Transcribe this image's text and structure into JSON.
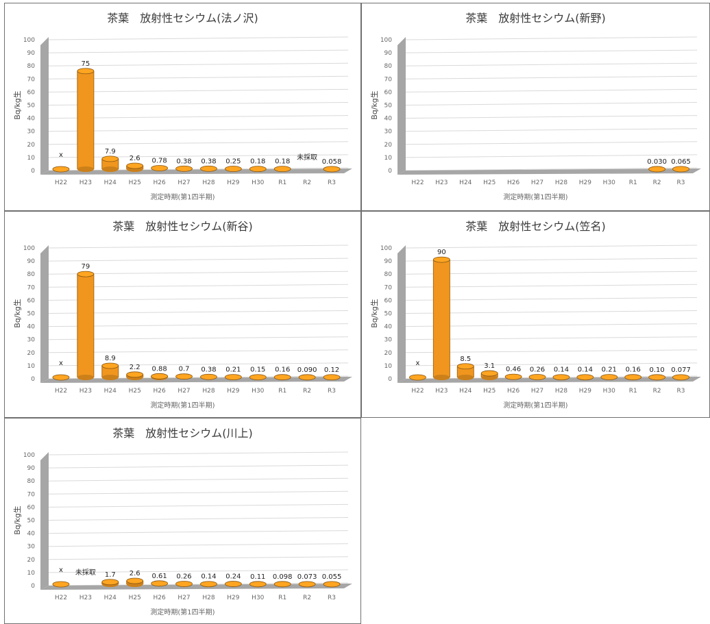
{
  "chart_data": [
    {
      "type": "bar",
      "title": "茶葉　放射性セシウム(法ノ沢)",
      "xlabel": "測定時期(第1四半期)",
      "ylabel": "Bq/kg生",
      "ylim": [
        0,
        100
      ],
      "yticks": [
        "0",
        "10",
        "20",
        "30",
        "40",
        "50",
        "60",
        "70",
        "80",
        "90",
        "100"
      ],
      "categories": [
        "H22",
        "H23",
        "H24",
        "H25",
        "H26",
        "H27",
        "H28",
        "H29",
        "H30",
        "R1",
        "R2",
        "R3"
      ],
      "values": [
        0,
        75,
        7.9,
        2.6,
        0.78,
        0.38,
        0.38,
        0.25,
        0.18,
        0.18,
        null,
        0.058
      ],
      "labels": [
        "x",
        "75",
        "7.9",
        "2.6",
        "0.78",
        "0.38",
        "0.38",
        "0.25",
        "0.18",
        "0.18",
        "未採取",
        "0.058"
      ],
      "bar_color": "#f0961e",
      "grid": true
    },
    {
      "type": "bar",
      "title": "茶葉　放射性セシウム(新野)",
      "xlabel": "測定時期(第1四半期)",
      "ylabel": "Bq/kg生",
      "ylim": [
        0,
        100
      ],
      "yticks": [
        "0",
        "10",
        "20",
        "30",
        "40",
        "50",
        "60",
        "70",
        "80",
        "90",
        "100"
      ],
      "categories": [
        "H22",
        "H23",
        "H24",
        "H25",
        "H26",
        "H27",
        "H28",
        "H29",
        "H30",
        "R1",
        "R2",
        "R3"
      ],
      "values": [
        null,
        null,
        null,
        null,
        null,
        null,
        null,
        null,
        null,
        null,
        0.03,
        0.065
      ],
      "labels": [
        "",
        "",
        "",
        "",
        "",
        "",
        "",
        "",
        "",
        "",
        "0.030",
        "0.065"
      ],
      "bar_color": "#f0961e",
      "grid": true
    },
    {
      "type": "bar",
      "title": "茶葉　放射性セシウム(新谷)",
      "xlabel": "測定時期(第1四半期)",
      "ylabel": "Bq/kg生",
      "ylim": [
        0,
        100
      ],
      "yticks": [
        "0",
        "10",
        "20",
        "30",
        "40",
        "50",
        "60",
        "70",
        "80",
        "90",
        "100"
      ],
      "categories": [
        "H22",
        "H23",
        "H24",
        "H25",
        "H26",
        "H27",
        "H28",
        "H29",
        "H30",
        "R1",
        "R2",
        "R3"
      ],
      "values": [
        0,
        79,
        8.9,
        2.2,
        0.88,
        0.7,
        0.38,
        0.21,
        0.15,
        0.16,
        0.09,
        0.12
      ],
      "labels": [
        "x",
        "79",
        "8.9",
        "2.2",
        "0.88",
        "0.7",
        "0.38",
        "0.21",
        "0.15",
        "0.16",
        "0.090",
        "0.12"
      ],
      "bar_color": "#f0961e",
      "grid": true
    },
    {
      "type": "bar",
      "title": "茶葉　放射性セシウム(笠名)",
      "xlabel": "測定時期(第1四半期)",
      "ylabel": "Bq/kg生",
      "ylim": [
        0,
        100
      ],
      "yticks": [
        "0",
        "10",
        "20",
        "30",
        "40",
        "50",
        "60",
        "70",
        "80",
        "90",
        "100"
      ],
      "categories": [
        "H22",
        "H23",
        "H24",
        "H25",
        "H26",
        "H27",
        "H28",
        "H29",
        "H30",
        "R1",
        "R2",
        "R3"
      ],
      "values": [
        0,
        90,
        8.5,
        3.1,
        0.46,
        0.26,
        0.14,
        0.14,
        0.21,
        0.16,
        0.1,
        0.077
      ],
      "labels": [
        "x",
        "90",
        "8.5",
        "3.1",
        "0.46",
        "0.26",
        "0.14",
        "0.14",
        "0.21",
        "0.16",
        "0.10",
        "0.077"
      ],
      "bar_color": "#f0961e",
      "grid": true
    },
    {
      "type": "bar",
      "title": "茶葉　放射性セシウム(川上)",
      "xlabel": "測定時期(第1四半期)",
      "ylabel": "Bq/kg生",
      "ylim": [
        0,
        100
      ],
      "yticks": [
        "0",
        "10",
        "20",
        "30",
        "40",
        "50",
        "60",
        "70",
        "80",
        "90",
        "100"
      ],
      "categories": [
        "H22",
        "H23",
        "H24",
        "H25",
        "H26",
        "H27",
        "H28",
        "H29",
        "H30",
        "R1",
        "R2",
        "R3"
      ],
      "values": [
        0,
        null,
        1.7,
        2.6,
        0.61,
        0.26,
        0.14,
        0.24,
        0.11,
        0.098,
        0.073,
        0.055
      ],
      "labels": [
        "x",
        "未採取",
        "1.7",
        "2.6",
        "0.61",
        "0.26",
        "0.14",
        "0.24",
        "0.11",
        "0.098",
        "0.073",
        "0.055"
      ],
      "bar_color": "#f0961e",
      "grid": true
    }
  ]
}
